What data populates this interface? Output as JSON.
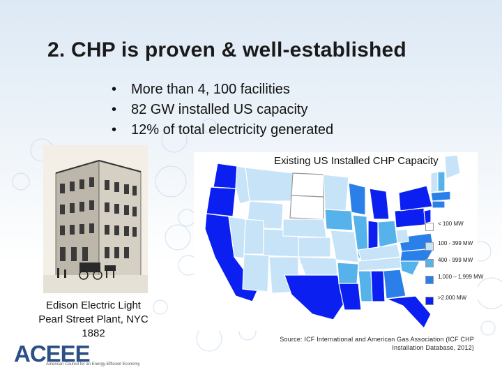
{
  "slide": {
    "title": "2. CHP is proven & well-established",
    "bullets": [
      "More than 4, 100 facilities",
      "82 GW installed US capacity",
      "12% of total electricity generated"
    ],
    "bullet_char": "•"
  },
  "photo": {
    "caption_line1": "Edison Electric Light",
    "caption_line2": "Pearl Street Plant, NYC",
    "caption_line3": "1882"
  },
  "map": {
    "title": "Existing US Installed CHP Capacity",
    "legend": [
      {
        "label": "< 100 MW",
        "color": "#ffffff"
      },
      {
        "label": "100 - 399 MW",
        "color": "#c7e3f7"
      },
      {
        "label": "400 - 999 MW",
        "color": "#56b2ea"
      },
      {
        "label": "1,000 – 1,999 MW",
        "color": "#2a7fe8"
      },
      {
        "label": ">2,000 MW",
        "color": "#0a1ff0"
      }
    ],
    "source_line1": "Source: ICF International and American Gas Association (ICF CHP",
    "source_line2": "Installation Database, 2012)"
  },
  "logo": {
    "text": "ACEEE",
    "subtitle": "American Council for an Energy-Efficient Economy"
  }
}
